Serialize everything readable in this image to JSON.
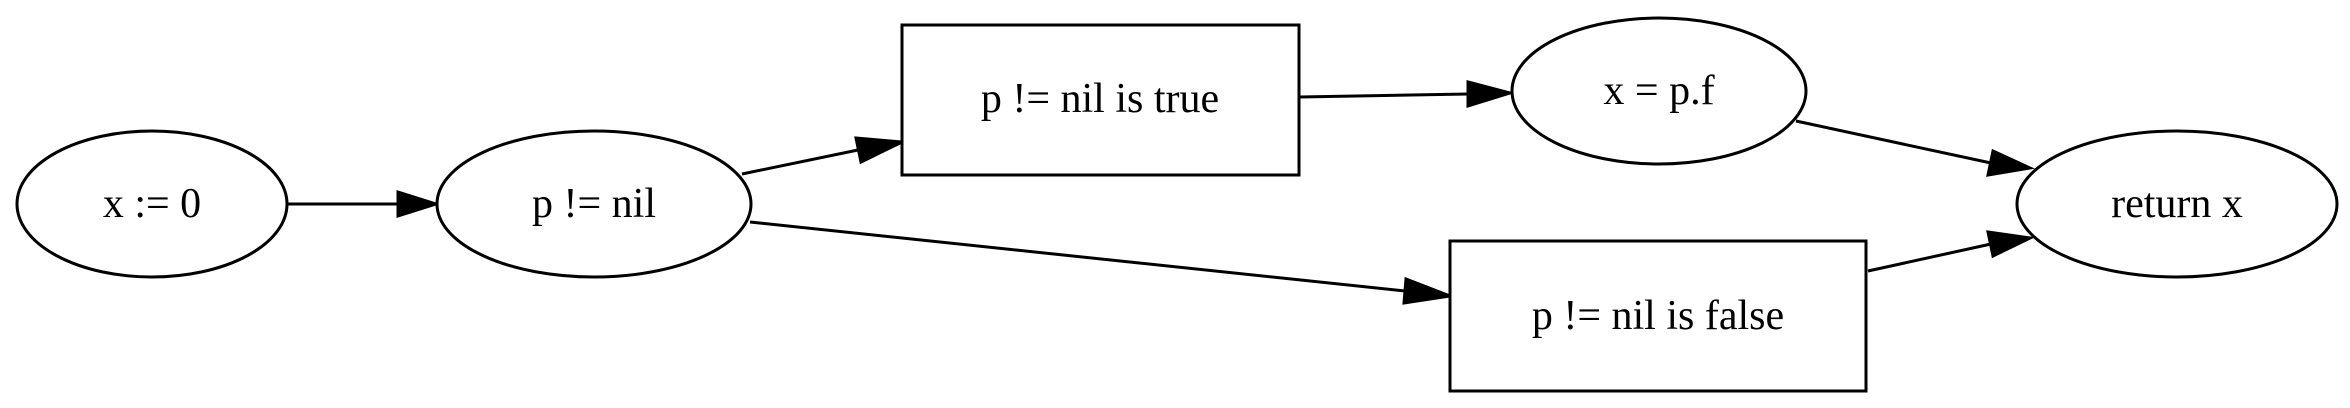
{
  "diagram": {
    "nodes": [
      {
        "id": "x_assign",
        "shape": "ellipse",
        "label": "x := 0"
      },
      {
        "id": "p_check",
        "shape": "ellipse",
        "label": "p != nil"
      },
      {
        "id": "p_true",
        "shape": "box",
        "label": "p != nil is true"
      },
      {
        "id": "x_eq_pf",
        "shape": "ellipse",
        "label": "x = p.f"
      },
      {
        "id": "p_false",
        "shape": "box",
        "label": "p != nil is false"
      },
      {
        "id": "ret_x",
        "shape": "ellipse",
        "label": "return x"
      }
    ],
    "edges": [
      {
        "from": "x_assign",
        "to": "p_check"
      },
      {
        "from": "p_check",
        "to": "p_true"
      },
      {
        "from": "p_check",
        "to": "p_false"
      },
      {
        "from": "p_true",
        "to": "x_eq_pf"
      },
      {
        "from": "x_eq_pf",
        "to": "ret_x"
      },
      {
        "from": "p_false",
        "to": "ret_x"
      }
    ],
    "colors": {
      "stroke": "#000000",
      "fill": "#ffffff",
      "text": "#000000"
    }
  }
}
